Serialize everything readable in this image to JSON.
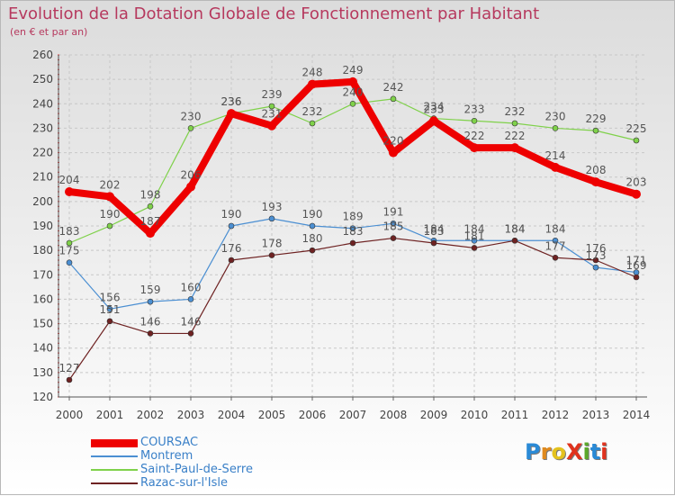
{
  "title": "Evolution de la Dotation Globale de Fonctionnement par Habitant",
  "subtitle": "(en € et par an)",
  "brand": {
    "text": "ProXiti",
    "letters": [
      "P",
      "r",
      "o",
      "X",
      "i",
      "t",
      "i"
    ],
    "colors": [
      "#2a8ad6",
      "#e08a1e",
      "#e4c21e",
      "#e0331e",
      "#5aa82a",
      "#2a8ad6",
      "#e0331e"
    ]
  },
  "chart_data": {
    "type": "line",
    "title": "Evolution de la Dotation Globale de Fonctionnement par Habitant",
    "subtitle": "(en € et par an)",
    "xlabel": "",
    "ylabel": "",
    "ylim": [
      120,
      260
    ],
    "yticks": [
      120,
      130,
      140,
      150,
      160,
      170,
      180,
      190,
      200,
      210,
      220,
      230,
      240,
      250,
      260
    ],
    "x": [
      "2000",
      "2001",
      "2002",
      "2003",
      "2004",
      "2005",
      "2006",
      "2007",
      "2008",
      "2009",
      "2010",
      "2011",
      "2012",
      "2013",
      "2014"
    ],
    "grid": true,
    "legend_position": "bottom-left",
    "series": [
      {
        "name": "COURSAC",
        "color": "#ee0000",
        "values": [
          204,
          202,
          187,
          206,
          236,
          231,
          248,
          249,
          220,
          233,
          222,
          222,
          214,
          208,
          203
        ]
      },
      {
        "name": "Montrem",
        "color": "#4b8fd2",
        "values": [
          175,
          156,
          159,
          160,
          190,
          193,
          190,
          189,
          191,
          184,
          184,
          184,
          184,
          173,
          171
        ]
      },
      {
        "name": "Saint-Paul-de-Serre",
        "color": "#7fd14a",
        "values": [
          183,
          190,
          198,
          230,
          236,
          239,
          232,
          240,
          242,
          234,
          233,
          232,
          230,
          229,
          225
        ]
      },
      {
        "name": "Razac-sur-l'Isle",
        "color": "#6e2222",
        "values": [
          127,
          151,
          146,
          146,
          176,
          178,
          180,
          183,
          185,
          183,
          181,
          184,
          177,
          176,
          169
        ]
      }
    ]
  }
}
